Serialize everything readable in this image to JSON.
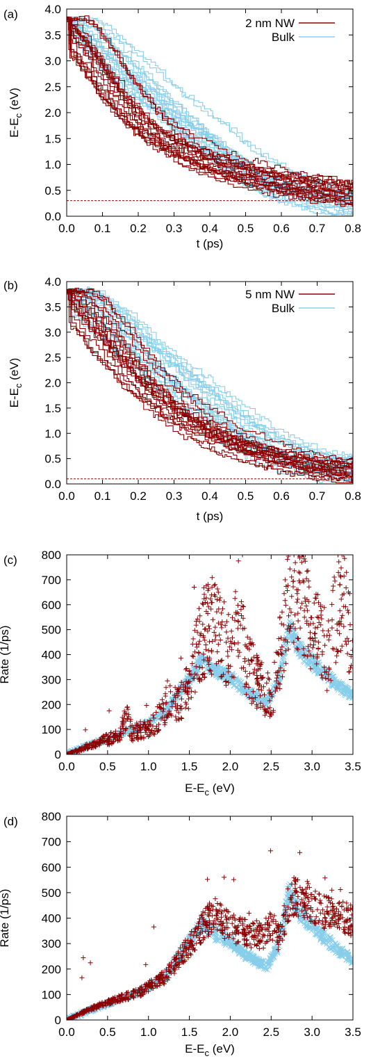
{
  "colors": {
    "nw": "#8b0000",
    "bulk": "#87ceeb",
    "axis": "#000000",
    "ref": "#8b0000"
  },
  "chart_data": [
    {
      "panel": "(a)",
      "type": "line",
      "xlabel": "t (ps)",
      "ylabel": {
        "main": "E-E",
        "sub": "c",
        "unit": " (eV)"
      },
      "xlim": [
        0,
        0.8
      ],
      "ylim": [
        0,
        4.0
      ],
      "xticks": [
        "0.0",
        "0.1",
        "0.2",
        "0.3",
        "0.4",
        "0.5",
        "0.6",
        "0.7",
        "0.8"
      ],
      "yticks": [
        "0.0",
        "0.5",
        "1.0",
        "1.5",
        "2.0",
        "2.5",
        "3.0",
        "3.5",
        "4.0"
      ],
      "grid": false,
      "legend_position": "top-right",
      "reference_line": {
        "y": 0.3,
        "style": "dashed"
      },
      "series": [
        {
          "name": "2 nm NW",
          "color_key": "nw",
          "ensemble": 20,
          "mean": [
            [
              0,
              3.8
            ],
            [
              0.05,
              3.35
            ],
            [
              0.1,
              2.85
            ],
            [
              0.15,
              2.35
            ],
            [
              0.2,
              1.95
            ],
            [
              0.25,
              1.62
            ],
            [
              0.3,
              1.38
            ],
            [
              0.35,
              1.18
            ],
            [
              0.4,
              1.02
            ],
            [
              0.45,
              0.9
            ],
            [
              0.5,
              0.8
            ],
            [
              0.55,
              0.7
            ],
            [
              0.6,
              0.62
            ],
            [
              0.65,
              0.56
            ],
            [
              0.7,
              0.5
            ],
            [
              0.75,
              0.46
            ],
            [
              0.8,
              0.42
            ]
          ]
        },
        {
          "name": "Bulk",
          "color_key": "bulk",
          "ensemble": 20,
          "mean": [
            [
              0,
              3.8
            ],
            [
              0.05,
              3.6
            ],
            [
              0.1,
              3.3
            ],
            [
              0.15,
              2.95
            ],
            [
              0.2,
              2.62
            ],
            [
              0.25,
              2.3
            ],
            [
              0.3,
              2.0
            ],
            [
              0.35,
              1.72
            ],
            [
              0.4,
              1.45
            ],
            [
              0.45,
              1.15
            ],
            [
              0.5,
              0.92
            ],
            [
              0.55,
              0.72
            ],
            [
              0.6,
              0.55
            ],
            [
              0.65,
              0.42
            ],
            [
              0.7,
              0.33
            ],
            [
              0.75,
              0.27
            ],
            [
              0.8,
              0.23
            ]
          ]
        }
      ]
    },
    {
      "panel": "(b)",
      "type": "line",
      "xlabel": "t (ps)",
      "ylabel": {
        "main": "E-E",
        "sub": "c",
        "unit": " (eV)"
      },
      "xlim": [
        0,
        0.8
      ],
      "ylim": [
        0,
        4.0
      ],
      "xticks": [
        "0.0",
        "0.1",
        "0.2",
        "0.3",
        "0.4",
        "0.5",
        "0.6",
        "0.7",
        "0.8"
      ],
      "yticks": [
        "0.0",
        "0.5",
        "1.0",
        "1.5",
        "2.0",
        "2.5",
        "3.0",
        "3.5",
        "4.0"
      ],
      "grid": false,
      "legend_position": "top-right",
      "reference_line": {
        "y": 0.1,
        "style": "dashed"
      },
      "series": [
        {
          "name": "5 nm NW",
          "color_key": "nw",
          "ensemble": 20,
          "mean": [
            [
              0,
              3.8
            ],
            [
              0.05,
              3.4
            ],
            [
              0.1,
              2.95
            ],
            [
              0.15,
              2.5
            ],
            [
              0.2,
              2.1
            ],
            [
              0.25,
              1.75
            ],
            [
              0.3,
              1.45
            ],
            [
              0.35,
              1.2
            ],
            [
              0.4,
              1.0
            ],
            [
              0.45,
              0.84
            ],
            [
              0.5,
              0.7
            ],
            [
              0.55,
              0.58
            ],
            [
              0.6,
              0.48
            ],
            [
              0.65,
              0.4
            ],
            [
              0.7,
              0.33
            ],
            [
              0.75,
              0.28
            ],
            [
              0.8,
              0.24
            ]
          ]
        },
        {
          "name": "Bulk",
          "color_key": "bulk",
          "ensemble": 20,
          "mean": [
            [
              0,
              3.8
            ],
            [
              0.05,
              3.6
            ],
            [
              0.1,
              3.3
            ],
            [
              0.15,
              2.95
            ],
            [
              0.2,
              2.62
            ],
            [
              0.25,
              2.3
            ],
            [
              0.3,
              2.0
            ],
            [
              0.35,
              1.72
            ],
            [
              0.4,
              1.45
            ],
            [
              0.45,
              1.15
            ],
            [
              0.5,
              0.92
            ],
            [
              0.55,
              0.72
            ],
            [
              0.6,
              0.55
            ],
            [
              0.65,
              0.42
            ],
            [
              0.7,
              0.33
            ],
            [
              0.75,
              0.27
            ],
            [
              0.8,
              0.23
            ]
          ]
        }
      ]
    },
    {
      "panel": "(c)",
      "type": "scatter",
      "xlabel": {
        "main": "E-E",
        "sub": "c",
        "unit": " (eV)"
      },
      "ylabel": "Rate (1/ps)",
      "xlim": [
        0,
        3.5
      ],
      "ylim": [
        0,
        800
      ],
      "xticks": [
        "0.0",
        "0.5",
        "1.0",
        "1.5",
        "2.0",
        "2.5",
        "3.0",
        "3.5"
      ],
      "yticks": [
        "0",
        "100",
        "200",
        "300",
        "400",
        "500",
        "600",
        "700",
        "800"
      ],
      "grid": false,
      "series": [
        {
          "name": "",
          "marker": "plus",
          "color_key": "nw",
          "profile": [
            [
              0,
              0
            ],
            [
              0.5,
              60
            ],
            [
              0.65,
              75
            ],
            [
              0.72,
              160
            ],
            [
              0.8,
              85
            ],
            [
              1.0,
              110
            ],
            [
              1.15,
              150
            ],
            [
              1.22,
              210
            ],
            [
              1.35,
              200
            ],
            [
              1.5,
              280
            ],
            [
              1.65,
              480
            ],
            [
              1.8,
              520
            ],
            [
              2.0,
              400
            ],
            [
              2.1,
              600
            ],
            [
              2.2,
              360
            ],
            [
              2.4,
              260
            ],
            [
              2.5,
              220
            ],
            [
              2.65,
              480
            ],
            [
              2.75,
              680
            ],
            [
              2.9,
              620
            ],
            [
              3.05,
              480
            ],
            [
              3.2,
              400
            ],
            [
              3.35,
              650
            ],
            [
              3.5,
              430
            ]
          ]
        },
        {
          "name": "",
          "marker": "cross",
          "color_key": "bulk",
          "profile": [
            [
              0,
              0
            ],
            [
              0.3,
              40
            ],
            [
              0.6,
              75
            ],
            [
              0.9,
              110
            ],
            [
              1.2,
              170
            ],
            [
              1.45,
              280
            ],
            [
              1.65,
              380
            ],
            [
              1.8,
              340
            ],
            [
              2.0,
              310
            ],
            [
              2.2,
              250
            ],
            [
              2.45,
              210
            ],
            [
              2.6,
              300
            ],
            [
              2.72,
              510
            ],
            [
              2.85,
              420
            ],
            [
              3.1,
              340
            ],
            [
              3.3,
              280
            ],
            [
              3.5,
              235
            ]
          ]
        }
      ]
    },
    {
      "panel": "(d)",
      "type": "scatter",
      "xlabel": {
        "main": "E-E",
        "sub": "c",
        "unit": " (eV)"
      },
      "ylabel": "Rate (1/ps)",
      "xlim": [
        0,
        3.5
      ],
      "ylim": [
        0,
        800
      ],
      "xticks": [
        "0.0",
        "0.5",
        "1.0",
        "1.5",
        "2.0",
        "2.5",
        "3.0",
        "3.5"
      ],
      "yticks": [
        "0",
        "100",
        "200",
        "300",
        "400",
        "500",
        "600",
        "700",
        "800"
      ],
      "grid": false,
      "series": [
        {
          "name": "",
          "marker": "plus",
          "color_key": "nw",
          "profile": [
            [
              0,
              0
            ],
            [
              0.3,
              45
            ],
            [
              0.6,
              80
            ],
            [
              0.9,
              110
            ],
            [
              1.2,
              170
            ],
            [
              1.45,
              270
            ],
            [
              1.65,
              360
            ],
            [
              1.8,
              420
            ],
            [
              2.0,
              360
            ],
            [
              2.2,
              340
            ],
            [
              2.4,
              330
            ],
            [
              2.5,
              380
            ],
            [
              2.6,
              320
            ],
            [
              2.75,
              490
            ],
            [
              2.9,
              480
            ],
            [
              3.1,
              430
            ],
            [
              3.3,
              410
            ],
            [
              3.5,
              390
            ]
          ]
        },
        {
          "name": "",
          "marker": "cross",
          "color_key": "bulk",
          "profile": [
            [
              0,
              0
            ],
            [
              0.3,
              40
            ],
            [
              0.6,
              75
            ],
            [
              0.9,
              110
            ],
            [
              1.2,
              170
            ],
            [
              1.45,
              280
            ],
            [
              1.65,
              380
            ],
            [
              1.8,
              340
            ],
            [
              2.0,
              310
            ],
            [
              2.2,
              250
            ],
            [
              2.45,
              210
            ],
            [
              2.6,
              300
            ],
            [
              2.72,
              510
            ],
            [
              2.85,
              420
            ],
            [
              3.1,
              340
            ],
            [
              3.3,
              280
            ],
            [
              3.5,
              235
            ]
          ]
        }
      ]
    }
  ]
}
